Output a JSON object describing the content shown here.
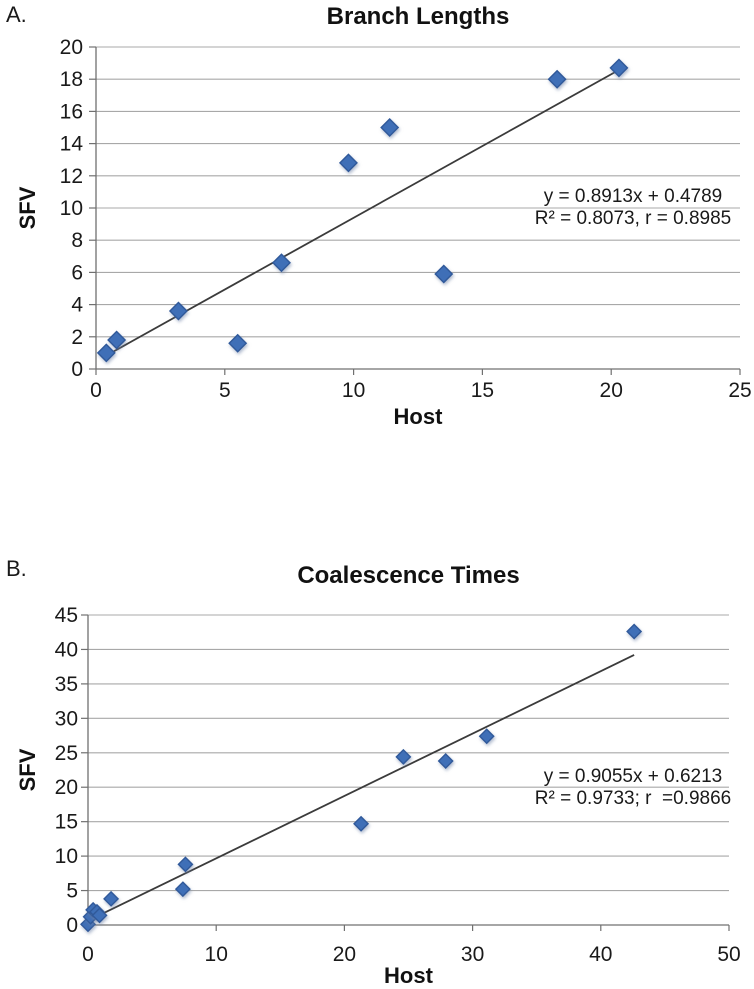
{
  "colors": {
    "marker_fill": "#3f6fb7",
    "marker_stroke": "#30599a",
    "trendline": "#3b3b3b",
    "gridline": "#a8a8a8",
    "axis": "#707070",
    "text": "#1a1a1a"
  },
  "chart_data": [
    {
      "panel_label": "A.",
      "type": "scatter",
      "title": "Branch Lengths",
      "xlabel": "Host",
      "ylabel": "SFV",
      "xlim": [
        0,
        25
      ],
      "ylim": [
        0,
        20
      ],
      "xticks": [
        0,
        5,
        10,
        15,
        20,
        25
      ],
      "yticks": [
        0,
        2,
        4,
        6,
        8,
        10,
        12,
        14,
        16,
        18,
        20
      ],
      "grid": true,
      "legend": "none",
      "points": [
        [
          0.4,
          1.0
        ],
        [
          0.8,
          1.8
        ],
        [
          3.2,
          3.6
        ],
        [
          5.5,
          1.6
        ],
        [
          7.2,
          6.6
        ],
        [
          9.8,
          12.8
        ],
        [
          11.4,
          15.0
        ],
        [
          13.5,
          5.9
        ],
        [
          17.9,
          18.0
        ],
        [
          20.3,
          18.7
        ]
      ],
      "trendline": {
        "slope": 0.8913,
        "intercept": 0.4789,
        "x_start": 0.35,
        "x_end": 20.35
      },
      "annotation": {
        "line1": "y = 0.8913x + 0.4789",
        "line2": "R² = 0.8073, r = 0.8985"
      }
    },
    {
      "panel_label": "B.",
      "type": "scatter",
      "title": "Coalescence Times",
      "xlabel": "Host",
      "ylabel": "SFV",
      "xlim": [
        0,
        50
      ],
      "ylim": [
        0,
        45
      ],
      "xticks": [
        0,
        10,
        20,
        30,
        40,
        50
      ],
      "yticks": [
        0,
        5,
        10,
        15,
        20,
        25,
        30,
        35,
        40,
        45
      ],
      "grid": true,
      "legend": "none",
      "points": [
        [
          0.0,
          0.1
        ],
        [
          0.2,
          1.2
        ],
        [
          0.4,
          2.2
        ],
        [
          0.7,
          1.9
        ],
        [
          0.9,
          1.4
        ],
        [
          1.8,
          3.8
        ],
        [
          7.4,
          5.2
        ],
        [
          7.6,
          8.8
        ],
        [
          21.3,
          14.7
        ],
        [
          24.6,
          24.4
        ],
        [
          27.9,
          23.8
        ],
        [
          31.1,
          27.4
        ],
        [
          42.6,
          42.6
        ]
      ],
      "trendline": {
        "slope": 0.9055,
        "intercept": 0.6213,
        "x_start": 0.0,
        "x_end": 42.6
      },
      "annotation": {
        "line1": "y = 0.9055x + 0.6213",
        "line2": "R² = 0.9733; r  =0.9866"
      }
    }
  ]
}
